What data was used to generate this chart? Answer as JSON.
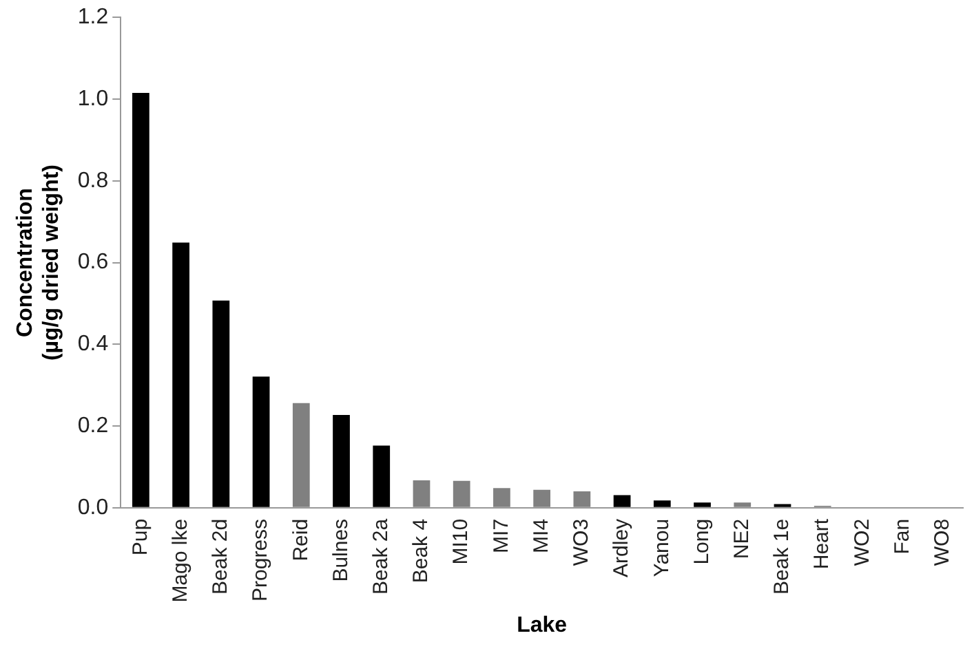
{
  "chart_data": {
    "type": "bar",
    "xlabel": "Lake",
    "ylabel": "Concentration\n(µg/g dried weight)",
    "categories": [
      "Pup",
      "Mago lke",
      "Beak 2d",
      "Progress",
      "Reid",
      "Bulnes",
      "Beak 2a",
      "Beak 4",
      "MI10",
      "MI7",
      "MI4",
      "WO3",
      "Ardley",
      "Yanou",
      "Long",
      "NE2",
      "Beak 1e",
      "Heart",
      "WO2",
      "Fan",
      "WO8"
    ],
    "values": [
      1.015,
      0.649,
      0.507,
      0.321,
      0.256,
      0.227,
      0.152,
      0.067,
      0.066,
      0.048,
      0.044,
      0.04,
      0.031,
      0.018,
      0.013,
      0.013,
      0.009,
      0.005,
      0.002,
      0,
      0.002
    ],
    "colors": [
      "#000000",
      "#000000",
      "#000000",
      "#000000",
      "#808080",
      "#000000",
      "#000000",
      "#808080",
      "#808080",
      "#808080",
      "#808080",
      "#808080",
      "#000000",
      "#000000",
      "#000000",
      "#808080",
      "#000000",
      "#808080",
      "#808080",
      "#808080",
      "#808080"
    ],
    "ylim": [
      0,
      1.2
    ],
    "yticks": [
      {
        "value": 0,
        "label": "0.0"
      },
      {
        "value": 0.2,
        "label": "0.2"
      },
      {
        "value": 0.4,
        "label": "0.4"
      },
      {
        "value": 0.6,
        "label": "0.6"
      },
      {
        "value": 0.8,
        "label": "0.8"
      },
      {
        "value": 1,
        "label": "1.0"
      },
      {
        "value": 1.2,
        "label": "1.2"
      }
    ],
    "grid": false,
    "legend": false
  }
}
